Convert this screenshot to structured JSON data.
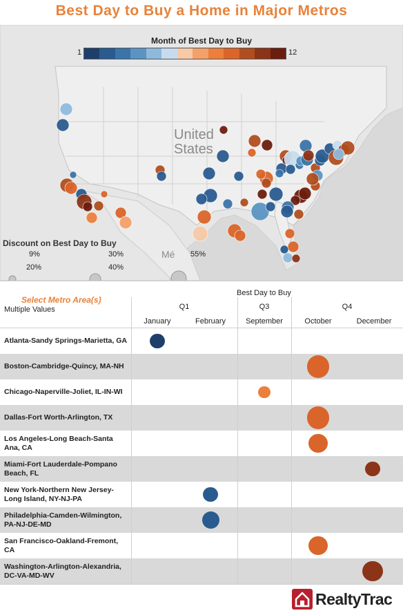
{
  "title": "Best Day to Buy a Home in Major Metros",
  "map": {
    "color_legend_title": "Month of Best Day to Buy",
    "color_scale_min": "1",
    "color_scale_max": "12",
    "color_scale": [
      "#1f3f6b",
      "#2a5b8f",
      "#3b74a8",
      "#5b94c2",
      "#8fb9dc",
      "#c6dcee",
      "#f7c9a6",
      "#f4a06b",
      "#ec7f3c",
      "#d9652a",
      "#b04e1f",
      "#8c3418",
      "#6b1e0e"
    ],
    "country_label_1": "United",
    "country_label_2": "States",
    "mexico_label": "Mé",
    "discount_legend_title": "Discount on Best Day to Buy",
    "discount_levels": [
      {
        "label": "9%",
        "value": 9
      },
      {
        "label": "20%",
        "value": 20
      },
      {
        "label": "30%",
        "value": 30
      },
      {
        "label": "40%",
        "value": 40
      },
      {
        "label": "55%",
        "value": 55
      }
    ]
  },
  "filter": {
    "select_label": "Select Metro Area(s)",
    "selected_value": "Multiple Values"
  },
  "chart_data": {
    "type": "scatter",
    "column_title": "Best Day to Buy",
    "quarters": [
      {
        "label": "Q1",
        "months": [
          "January",
          "February"
        ]
      },
      {
        "label": "Q3",
        "months": [
          "September"
        ]
      },
      {
        "label": "Q4",
        "months": [
          "October",
          "December"
        ]
      }
    ],
    "months": [
      "January",
      "February",
      "September",
      "October",
      "December"
    ],
    "rows": [
      {
        "metro": "Atlanta-Sandy Springs-Marietta, GA",
        "month": "January",
        "color": "#1f3f6b",
        "discount": 18
      },
      {
        "metro": "Boston-Cambridge-Quincy, MA-NH",
        "month": "October",
        "color": "#d9652a",
        "discount": 42
      },
      {
        "metro": "Chicago-Naperville-Joliet, IL-IN-WI",
        "month": "September",
        "color": "#ec7f3c",
        "discount": 12
      },
      {
        "metro": "Dallas-Fort Worth-Arlington, TX",
        "month": "October",
        "color": "#d9652a",
        "discount": 42
      },
      {
        "metro": "Los Angeles-Long Beach-Santa Ana, CA",
        "month": "October",
        "color": "#d9652a",
        "discount": 30
      },
      {
        "metro": "Miami-Fort Lauderdale-Pompano Beach, FL",
        "month": "December",
        "color": "#8c3418",
        "discount": 18
      },
      {
        "metro": "New York-Northern New Jersey-Long Island, NY-NJ-PA",
        "month": "February",
        "color": "#2a5b8f",
        "discount": 18
      },
      {
        "metro": "Philadelphia-Camden-Wilmington, PA-NJ-DE-MD",
        "month": "February",
        "color": "#2a5b8f",
        "discount": 25
      },
      {
        "metro": "San Francisco-Oakland-Fremont, CA",
        "month": "October",
        "color": "#d9652a",
        "discount": 30
      },
      {
        "metro": "Washington-Arlington-Alexandria, DC-VA-MD-WV",
        "month": "December",
        "color": "#8c3418",
        "discount": 34
      }
    ]
  },
  "brand": {
    "logo_text": "RealtyTrac"
  }
}
